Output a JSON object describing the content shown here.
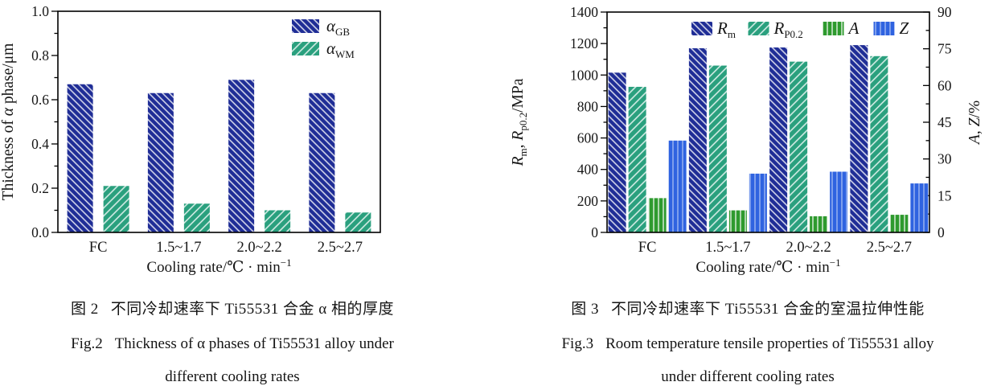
{
  "page": {
    "background": "#ffffff",
    "text_color": "#141414"
  },
  "figures": [
    {
      "id": "fig2",
      "caption": {
        "zh_label": "图 2",
        "zh_text": "不同冷却速率下 Ti55531 合金 α 相的厚度",
        "en_label": "Fig.2",
        "en_line1": "Thickness of α phases of Ti55531 alloy under",
        "en_line2": "different cooling rates"
      }
    },
    {
      "id": "fig3",
      "caption": {
        "zh_label": "图 3",
        "zh_text": "不同冷却速率下 Ti55531 合金的室温拉伸性能",
        "en_label": "Fig.3",
        "en_line1": "Room temperature tensile properties of Ti55531 alloy",
        "en_line2": "under different cooling rates"
      }
    }
  ],
  "chart_data": [
    {
      "type": "bar",
      "figure": "fig2",
      "title": "",
      "categories": [
        "FC",
        "1.5~1.7",
        "2.0~2.2",
        "2.5~2.7"
      ],
      "series": [
        {
          "name": "alpha-GB",
          "label_main": "α",
          "label_sub": "GB",
          "italic": true,
          "color": "#1f2d96",
          "hatch": "diag-down",
          "hatch_line": "rgba(255,255,255,0.85)",
          "hatch_spacing": 6,
          "axis": "left",
          "values": [
            0.67,
            0.63,
            0.69,
            0.63
          ]
        },
        {
          "name": "alpha-WM",
          "label_main": "α",
          "label_sub": "WM",
          "italic": true,
          "color": "#2aa07e",
          "hatch": "diag-up",
          "hatch_line": "rgba(255,255,255,0.85)",
          "hatch_spacing": 7,
          "axis": "left",
          "values": [
            0.21,
            0.13,
            0.1,
            0.09
          ]
        }
      ],
      "xlabel_parts": [
        {
          "t": "Cooling rate/℃ · min"
        },
        {
          "t": "−1",
          "sup": true
        }
      ],
      "ylabel_parts": [
        {
          "t": "Thickness of "
        },
        {
          "t": "α",
          "i": true
        },
        {
          "t": " phase/μm"
        }
      ],
      "yaxis": {
        "min": 0,
        "max": 1.0,
        "major": 0.2,
        "minor": 0.1,
        "decimals": 1
      },
      "legend_orient": "v",
      "grid": false
    },
    {
      "type": "bar",
      "figure": "fig3",
      "title": "",
      "categories": [
        "FC",
        "1.5~1.7",
        "2.0~2.2",
        "2.5~2.7"
      ],
      "series": [
        {
          "name": "Rm",
          "label_main": "R",
          "label_sub": "m",
          "italic": true,
          "color": "#1f2d96",
          "hatch": "diag-down",
          "hatch_line": "rgba(255,255,255,0.85)",
          "hatch_spacing": 6,
          "axis": "left",
          "values": [
            1015,
            1170,
            1175,
            1190
          ]
        },
        {
          "name": "RP0.2",
          "label_main": "R",
          "label_sub": "P0.2",
          "italic": true,
          "color": "#2aa07e",
          "hatch": "diag-up",
          "hatch_line": "rgba(255,255,255,0.85)",
          "hatch_spacing": 7,
          "axis": "left",
          "values": [
            925,
            1060,
            1085,
            1120
          ]
        },
        {
          "name": "A",
          "label_main": "A",
          "label_sub": "",
          "italic": true,
          "color": "#2e9a2e",
          "hatch": "vertical",
          "hatch_line": "rgba(255,255,255,0.8)",
          "hatch_spacing": 6,
          "axis": "right",
          "values": [
            14,
            9,
            6.6,
            7.2
          ]
        },
        {
          "name": "Z",
          "label_main": "Z",
          "label_sub": "",
          "italic": true,
          "color": "#2f63e0",
          "hatch": "vertical",
          "hatch_line": "rgba(255,255,255,0.5)",
          "hatch_spacing": 6,
          "axis": "right",
          "values": [
            37.5,
            24,
            24.8,
            20
          ]
        }
      ],
      "xlabel_parts": [
        {
          "t": "Cooling rate/℃ · min"
        },
        {
          "t": "−1",
          "sup": true
        }
      ],
      "ylabel_parts": [
        {
          "t": "R",
          "i": true
        },
        {
          "t": "m",
          "sub": true
        },
        {
          "t": ", "
        },
        {
          "t": "R",
          "i": true
        },
        {
          "t": "p0.2",
          "sub": true
        },
        {
          "t": "/MPa"
        }
      ],
      "y2label_parts": [
        {
          "t": "A",
          "i": true
        },
        {
          "t": ", "
        },
        {
          "t": "Z",
          "i": true
        },
        {
          "t": "/%"
        }
      ],
      "yaxis": {
        "min": 0,
        "max": 1400,
        "major": 200,
        "minor": 100,
        "decimals": 0
      },
      "y2axis": {
        "min": 0,
        "max": 90,
        "major": 15,
        "minor": 7.5,
        "decimals": 0
      },
      "legend_orient": "h",
      "grid": false
    }
  ]
}
